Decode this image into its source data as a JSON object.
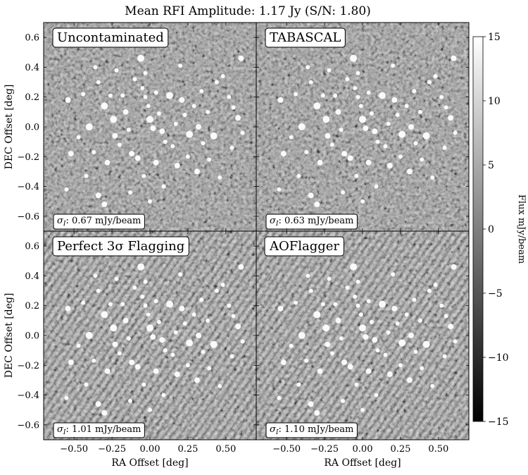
{
  "chart_data": {
    "type": "heatmap",
    "title": "Mean RFI Amplitude: 1.17 Jy (S/N: 1.80)",
    "xlabel": "RA Offset [deg]",
    "ylabel": "DEC Offset [deg]",
    "xlim": [
      -0.7,
      0.7
    ],
    "ylim": [
      -0.7,
      0.7
    ],
    "x_ticks": [
      -0.5,
      -0.25,
      0.0,
      0.25,
      0.5
    ],
    "x_tick_labels": [
      "−0.50",
      "−0.25",
      "0.00",
      "0.25",
      "0.50"
    ],
    "y_ticks": [
      0.6,
      0.4,
      0.2,
      0.0,
      -0.2,
      -0.4,
      -0.6
    ],
    "y_tick_labels": [
      "0.6",
      "0.4",
      "0.2",
      "0.0",
      "−0.2",
      "−0.4",
      "−0.6"
    ],
    "colorbar": {
      "label": "Flux mJy/beam",
      "range": [
        -15,
        15
      ],
      "ticks": [
        15,
        10,
        5,
        0,
        -5,
        -10,
        -15
      ],
      "tick_labels": [
        "15",
        "10",
        "5",
        "0",
        "−5",
        "−10",
        "−15"
      ],
      "colormap": "grayscale"
    },
    "panels": [
      {
        "name": "Uncontaminated",
        "sigma_label": "σ",
        "sigma_sub": "I",
        "sigma_value": ": 0.67 mJy/beam",
        "noise_rms": 0.67,
        "stripes": false
      },
      {
        "name": "TABASCAL",
        "sigma_label": "σ",
        "sigma_sub": "I",
        "sigma_value": ": 0.63 mJy/beam",
        "noise_rms": 0.63,
        "stripes": false
      },
      {
        "name": "Perfect 3σ Flagging",
        "sigma_label": "σ",
        "sigma_sub": "I",
        "sigma_value": ": 1.01 mJy/beam",
        "noise_rms": 1.01,
        "stripes": true
      },
      {
        "name": "AOFlagger",
        "sigma_label": "σ",
        "sigma_sub": "I",
        "sigma_value": ": 1.10 mJy/beam",
        "noise_rms": 1.1,
        "stripes": true
      }
    ],
    "sources_deg": [
      [
        -0.54,
        0.18
      ],
      [
        -0.44,
        0.22
      ],
      [
        -0.4,
        0.0
      ],
      [
        -0.36,
        0.4
      ],
      [
        -0.34,
        0.3
      ],
      [
        -0.3,
        0.14
      ],
      [
        -0.26,
        0.21
      ],
      [
        -0.24,
        0.05
      ],
      [
        -0.23,
        -0.06
      ],
      [
        -0.18,
        0.21
      ],
      [
        -0.16,
        0.1
      ],
      [
        -0.14,
        -0.02
      ],
      [
        -0.22,
        0.38
      ],
      [
        -0.12,
        -0.18
      ],
      [
        -0.1,
        0.32
      ],
      [
        -0.06,
        0.46
      ],
      [
        -0.05,
        0.26
      ],
      [
        -0.03,
        0.2
      ],
      [
        -0.01,
        0.14
      ],
      [
        0.0,
        0.05
      ],
      [
        0.02,
        -0.01
      ],
      [
        0.04,
        0.23
      ],
      [
        0.06,
        0.09
      ],
      [
        0.08,
        -0.03
      ],
      [
        0.1,
        -0.1
      ],
      [
        0.13,
        0.21
      ],
      [
        0.17,
        0.02
      ],
      [
        0.21,
        0.18
      ],
      [
        0.23,
        0.08
      ],
      [
        0.26,
        -0.05
      ],
      [
        0.29,
        0.14
      ],
      [
        0.32,
        0.0
      ],
      [
        0.34,
        0.24
      ],
      [
        0.38,
        0.1
      ],
      [
        0.42,
        -0.06
      ],
      [
        0.48,
        0.34
      ],
      [
        0.52,
        0.2
      ],
      [
        0.55,
        0.13
      ],
      [
        0.58,
        0.06
      ],
      [
        0.61,
        -0.04
      ],
      [
        -0.52,
        -0.18
      ],
      [
        -0.47,
        -0.07
      ],
      [
        -0.37,
        -0.17
      ],
      [
        -0.28,
        -0.24
      ],
      [
        -0.2,
        -0.12
      ],
      [
        -0.08,
        -0.21
      ],
      [
        -0.04,
        -0.33
      ],
      [
        0.04,
        -0.24
      ],
      [
        0.09,
        -0.4
      ],
      [
        0.18,
        -0.26
      ],
      [
        0.25,
        -0.2
      ],
      [
        0.31,
        -0.3
      ],
      [
        0.39,
        -0.22
      ],
      [
        0.46,
        -0.34
      ],
      [
        0.54,
        -0.14
      ],
      [
        -0.34,
        -0.46
      ],
      [
        -0.3,
        -0.52
      ],
      [
        -0.13,
        -0.44
      ],
      [
        0.0,
        -0.5
      ],
      [
        -0.42,
        -0.33
      ],
      [
        -0.55,
        -0.42
      ],
      [
        0.15,
        -0.13
      ],
      [
        0.35,
        -0.11
      ],
      [
        0.6,
        0.46
      ],
      [
        -0.03,
        0.36
      ],
      [
        0.2,
        0.41
      ],
      [
        0.44,
        0.3
      ]
    ],
    "source_sizes": [
      4,
      3,
      5,
      3,
      3,
      5,
      3,
      5,
      4,
      3,
      4,
      3,
      3,
      4,
      3,
      5,
      3,
      3,
      3,
      5,
      4,
      3,
      3,
      4,
      3,
      5,
      3,
      4,
      3,
      5,
      3,
      4,
      3,
      3,
      5,
      3,
      3,
      3,
      4,
      3,
      4,
      3,
      3,
      4,
      3,
      4,
      3,
      4,
      3,
      4,
      3,
      4,
      3,
      3,
      3,
      4,
      4,
      3,
      3,
      3,
      3,
      3,
      3,
      4,
      3,
      3,
      3
    ]
  }
}
